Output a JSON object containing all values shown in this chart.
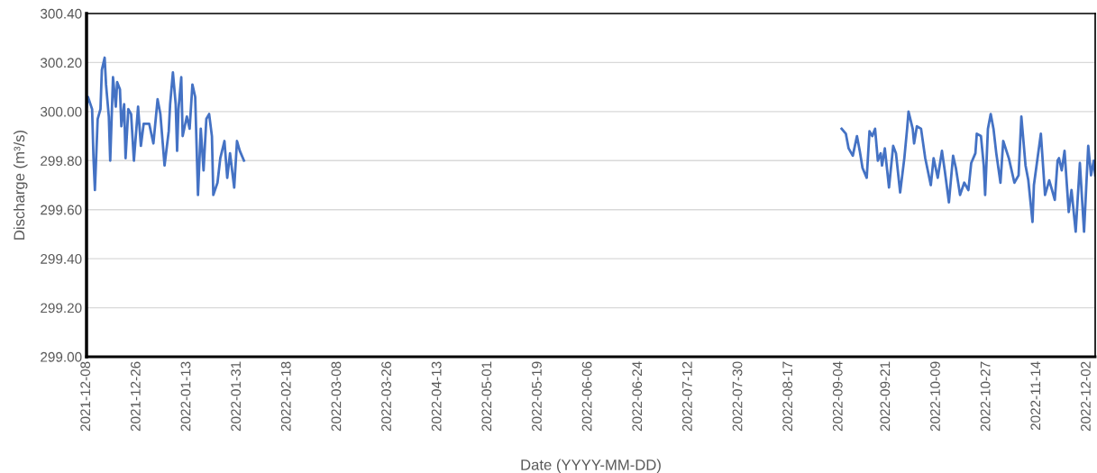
{
  "chart_data": {
    "type": "line",
    "xlabel": "Date (YYYY-MM-DD)",
    "ylabel": "Discharge (m³/s)",
    "xlim": [
      "2021-12-08",
      "2022-12-05"
    ],
    "xticks": [
      "2021-12-08",
      "2021-12-26",
      "2022-01-13",
      "2022-01-31",
      "2022-02-18",
      "2022-03-08",
      "2022-03-26",
      "2022-04-13",
      "2022-05-01",
      "2022-05-19",
      "2022-06-06",
      "2022-06-24",
      "2022-07-12",
      "2022-07-30",
      "2022-08-17",
      "2022-09-04",
      "2022-09-21",
      "2022-10-09",
      "2022-10-27",
      "2022-11-14",
      "2022-12-02"
    ],
    "ylim": [
      299.0,
      300.4
    ],
    "yticks": [
      {
        "value": 299.0,
        "label": "299.00"
      },
      {
        "value": 299.2,
        "label": "299.20"
      },
      {
        "value": 299.4,
        "label": "299.40"
      },
      {
        "value": 299.6,
        "label": "299.60"
      },
      {
        "value": 299.8,
        "label": "299.80"
      },
      {
        "value": 300.0,
        "label": "300.00"
      },
      {
        "value": 300.2,
        "label": "300.20"
      },
      {
        "value": 300.4,
        "label": "300.40"
      }
    ],
    "grid": "y",
    "marker": "none",
    "line_style": "solid",
    "x": [
      "2021-12-08T00:00",
      "2021-12-08T12:00",
      "2021-12-10",
      "2021-12-10T12:00",
      "2021-12-11",
      "2021-12-12",
      "2021-12-13",
      "2021-12-13T12:00",
      "2021-12-14T12:00",
      "2021-12-15",
      "2021-12-16",
      "2021-12-16T12:00",
      "2021-12-17",
      "2021-12-17T12:00",
      "2021-12-18T12:00",
      "2021-12-19",
      "2021-12-20",
      "2021-12-20T12:00",
      "2021-12-21T12:00",
      "2021-12-22",
      "2021-12-23",
      "2021-12-24",
      "2021-12-25",
      "2021-12-26T12:00",
      "2021-12-27T12:00",
      "2021-12-28T12:00",
      "2021-12-30T12:00",
      "2022-01-01",
      "2022-01-02T12:00",
      "2022-01-03T12:00",
      "2022-01-05",
      "2022-01-06T12:00",
      "2022-01-07",
      "2022-01-08",
      "2022-01-09",
      "2022-01-09T12:00",
      "2022-01-10",
      "2022-01-11",
      "2022-01-11T12:00",
      "2022-01-13",
      "2022-01-14",
      "2022-01-15",
      "2022-01-16",
      "2022-01-17",
      "2022-01-18",
      "2022-01-19",
      "2022-01-20",
      "2022-01-21",
      "2022-01-22",
      "2022-01-22T12:00",
      "2022-01-24",
      "2022-01-25",
      "2022-01-26T12:00",
      "2022-01-27T12:00",
      "2022-01-28T12:00",
      "2022-01-30",
      "2022-01-31",
      "2022-02-01",
      "2022-02-02T12:00",
      "2022-05-01",
      "2022-09-05",
      "2022-09-06T12:00",
      "2022-09-07T12:00",
      "2022-09-09",
      "2022-09-10T12:00",
      "2022-09-11T12:00",
      "2022-09-12T12:00",
      "2022-09-14",
      "2022-09-15",
      "2022-09-16",
      "2022-09-17",
      "2022-09-18",
      "2022-09-19",
      "2022-09-19T12:00",
      "2022-09-20T12:00",
      "2022-09-22",
      "2022-09-23T12:00",
      "2022-09-24T12:00",
      "2022-09-26",
      "2022-09-27T12:00",
      "2022-09-28T12:00",
      "2022-09-29",
      "2022-09-30T12:00",
      "2022-10-01",
      "2022-10-02",
      "2022-10-03T12:00",
      "2022-10-05",
      "2022-10-07",
      "2022-10-08",
      "2022-10-09T12:00",
      "2022-10-11",
      "2022-10-12",
      "2022-10-13T12:00",
      "2022-10-15",
      "2022-10-16",
      "2022-10-17T12:00",
      "2022-10-19",
      "2022-10-20T12:00",
      "2022-10-21T12:00",
      "2022-10-23",
      "2022-10-23T12:00",
      "2022-10-25",
      "2022-10-26",
      "2022-10-26T12:00",
      "2022-10-27T12:00",
      "2022-10-28T12:00",
      "2022-10-29T12:00",
      "2022-10-30T12:00",
      "2022-11-01",
      "2022-11-02",
      "2022-11-04",
      "2022-11-06",
      "2022-11-07T12:00",
      "2022-11-08T12:00",
      "2022-11-10",
      "2022-11-11",
      "2022-11-12T12:00",
      "2022-11-13",
      "2022-11-15T12:00",
      "2022-11-17",
      "2022-11-18T12:00",
      "2022-11-19T12:00",
      "2022-11-20T12:00",
      "2022-11-21T12:00",
      "2022-11-22",
      "2022-11-23",
      "2022-11-24",
      "2022-11-25T12:00",
      "2022-11-26T12:00",
      "2022-11-28",
      "2022-11-29T12:00",
      "2022-12-01",
      "2022-12-02T12:00",
      "2022-12-03T12:00",
      "2022-12-04T12:00",
      "2022-12-05"
    ],
    "series": [
      {
        "color": "#4472c4",
        "values": [
          300.02,
          300.06,
          300.01,
          299.81,
          299.68,
          299.97,
          300.01,
          300.17,
          300.22,
          300.11,
          299.98,
          299.8,
          299.97,
          300.14,
          300.02,
          300.12,
          300.09,
          299.94,
          300.03,
          299.81,
          300.01,
          299.99,
          299.8,
          300.02,
          299.86,
          299.95,
          299.95,
          299.87,
          300.05,
          299.99,
          299.78,
          299.92,
          300.03,
          300.16,
          300.03,
          299.84,
          300.01,
          300.14,
          299.9,
          299.98,
          299.93,
          300.11,
          300.06,
          299.66,
          299.93,
          299.76,
          299.97,
          299.99,
          299.9,
          299.66,
          299.71,
          299.81,
          299.88,
          299.73,
          299.83,
          299.69,
          299.88,
          299.84,
          299.8,
          null,
          299.93,
          299.91,
          299.85,
          299.82,
          299.9,
          299.84,
          299.77,
          299.73,
          299.92,
          299.9,
          299.93,
          299.8,
          299.83,
          299.78,
          299.85,
          299.69,
          299.86,
          299.83,
          299.67,
          299.81,
          299.93,
          300.0,
          299.93,
          299.87,
          299.94,
          299.93,
          299.81,
          299.7,
          299.81,
          299.73,
          299.84,
          299.76,
          299.63,
          299.82,
          299.77,
          299.66,
          299.71,
          299.68,
          299.79,
          299.83,
          299.91,
          299.9,
          299.78,
          299.66,
          299.93,
          299.99,
          299.93,
          299.83,
          299.71,
          299.88,
          299.81,
          299.71,
          299.74,
          299.98,
          299.78,
          299.72,
          299.55,
          299.7,
          299.91,
          299.66,
          299.72,
          299.68,
          299.64,
          299.8,
          299.81,
          299.76,
          299.84,
          299.59,
          299.68,
          299.51,
          299.79,
          299.51,
          299.86,
          299.74,
          299.8,
          299.74
        ]
      }
    ]
  }
}
